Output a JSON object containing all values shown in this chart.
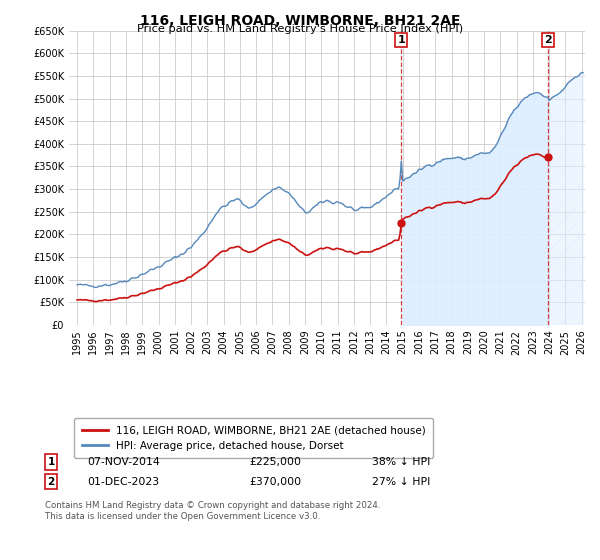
{
  "title": "116, LEIGH ROAD, WIMBORNE, BH21 2AE",
  "subtitle": "Price paid vs. HM Land Registry's House Price Index (HPI)",
  "sale1_date": "07-NOV-2014",
  "sale1_price": 225000,
  "sale1_label": "38% ↓ HPI",
  "sale2_date": "01-DEC-2023",
  "sale2_price": 370000,
  "sale2_label": "27% ↓ HPI",
  "legend_property": "116, LEIGH ROAD, WIMBORNE, BH21 2AE (detached house)",
  "legend_hpi": "HPI: Average price, detached house, Dorset",
  "footer": "Contains HM Land Registry data © Crown copyright and database right 2024.\nThis data is licensed under the Open Government Licence v3.0.",
  "hpi_color": "#5588bb",
  "property_color": "#cc1111",
  "vline_color": "#cc1111",
  "fill_color": "#ddeeff",
  "ylim_min": 0,
  "ylim_max": 650000,
  "sale1_x": 2014.917,
  "sale2_x": 2023.917,
  "xlim_min": 1994.5,
  "xlim_max": 2026.2,
  "background_color": "#ffffff",
  "grid_color": "#cccccc",
  "title_fontsize": 10,
  "subtitle_fontsize": 8,
  "tick_fontsize": 7,
  "legend_fontsize": 7.5
}
